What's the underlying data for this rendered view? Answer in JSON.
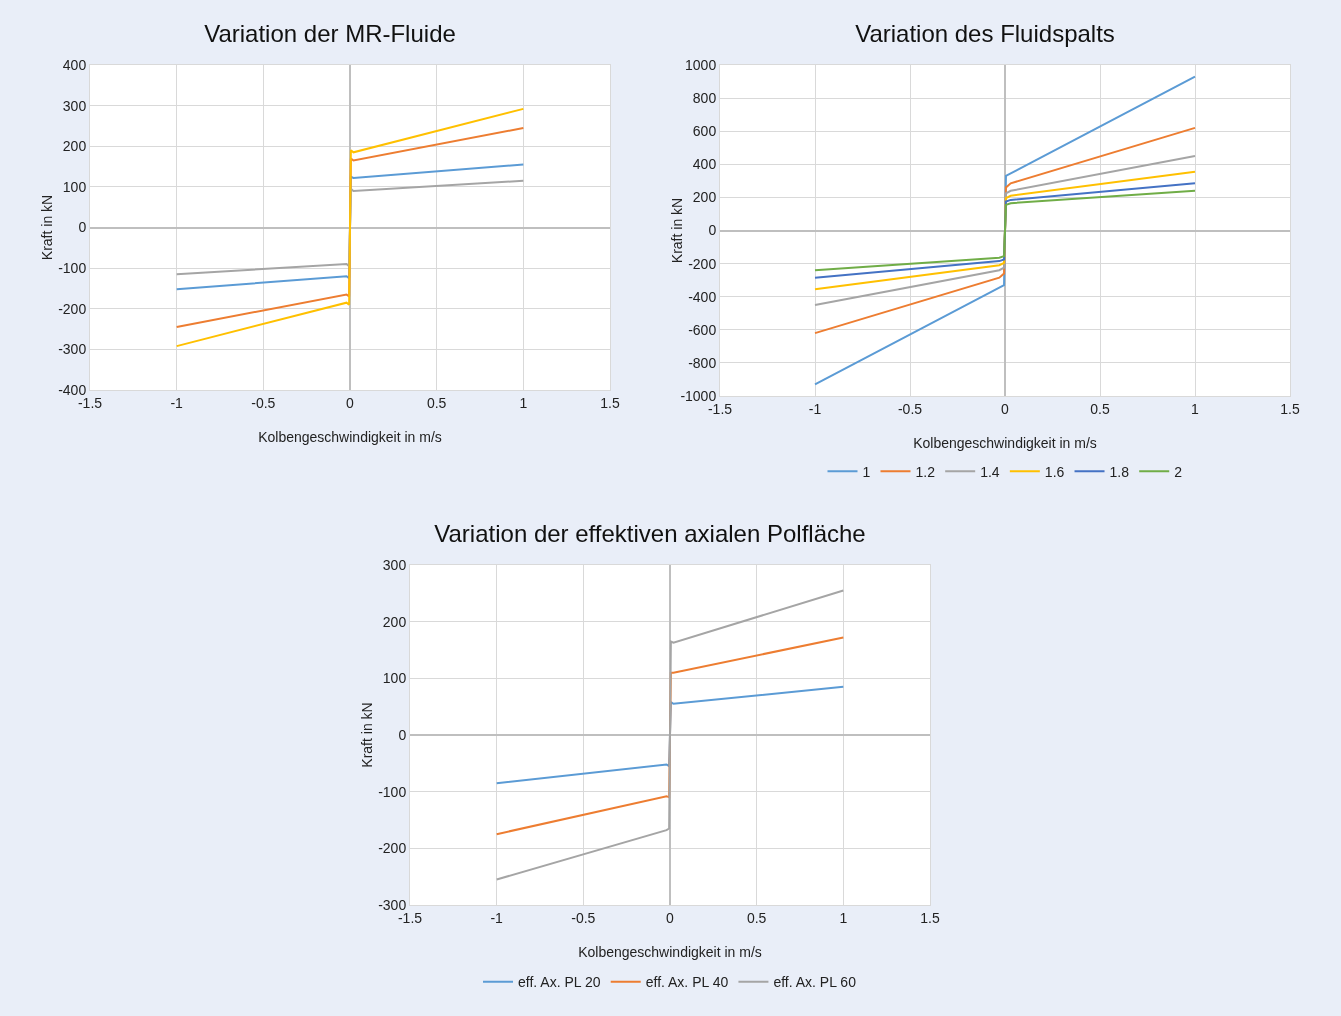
{
  "chart_data": [
    {
      "type": "line",
      "title": "Variation der MR-Fluide",
      "xlabel": "Kolbengeschwindigkeit in m/s",
      "ylabel": "Kraft in kN",
      "xlim": [
        -1.5,
        1.5
      ],
      "xticks": [
        -1.5,
        -1,
        -0.5,
        0,
        0.5,
        1,
        1.5
      ],
      "ylim": [
        -400,
        400
      ],
      "yticks": [
        -400,
        -300,
        -200,
        -100,
        0,
        100,
        200,
        300,
        400
      ],
      "grid": true,
      "legend": false,
      "marker": "none",
      "line_style": "solid",
      "series": [
        {
          "color": "#5b9bd5",
          "x": [
            -1,
            -0.02,
            -0.005,
            0.005,
            0.02,
            1
          ],
          "values": [
            -152,
            -120,
            -125,
            125,
            122,
            155
          ]
        },
        {
          "color": "#ed7d31",
          "x": [
            -1,
            -0.02,
            -0.005,
            0.005,
            0.02,
            1
          ],
          "values": [
            -245,
            -165,
            -170,
            170,
            165,
            245
          ]
        },
        {
          "color": "#a5a5a5",
          "x": [
            -1,
            -0.02,
            -0.005,
            0.005,
            0.02,
            1
          ],
          "values": [
            -115,
            -90,
            -95,
            95,
            90,
            115
          ]
        },
        {
          "color": "#ffc000",
          "x": [
            -1,
            -0.02,
            -0.005,
            0.005,
            0.02,
            1
          ],
          "values": [
            -292,
            -185,
            -190,
            190,
            185,
            292
          ]
        }
      ]
    },
    {
      "type": "line",
      "title": "Variation des Fluidspalts",
      "xlabel": "Kolbengeschwindigkeit in m/s",
      "ylabel": "Kraft in kN",
      "xlim": [
        -1.5,
        1.5
      ],
      "xticks": [
        -1.5,
        -1,
        -0.5,
        0,
        0.5,
        1,
        1.5
      ],
      "ylim": [
        -1000,
        1000
      ],
      "yticks": [
        -1000,
        -800,
        -600,
        -400,
        -200,
        0,
        200,
        400,
        600,
        800,
        1000
      ],
      "grid": true,
      "legend": "bottom",
      "marker": "none",
      "line_style": "solid",
      "series": [
        {
          "name": "1",
          "color": "#5b9bd5",
          "x": [
            -1,
            -0.03,
            -0.005,
            0.005,
            0.03,
            1
          ],
          "values": [
            -930,
            -345,
            -330,
            330,
            345,
            930
          ]
        },
        {
          "name": "1.2",
          "color": "#ed7d31",
          "x": [
            -1,
            -0.03,
            -0.005,
            0.005,
            0.03,
            1
          ],
          "values": [
            -620,
            -285,
            -260,
            260,
            285,
            620
          ]
        },
        {
          "name": "1.4",
          "color": "#a5a5a5",
          "x": [
            -1,
            -0.03,
            -0.005,
            0.005,
            0.03,
            1
          ],
          "values": [
            -450,
            -240,
            -225,
            225,
            240,
            450
          ]
        },
        {
          "name": "1.6",
          "color": "#ffc000",
          "x": [
            -1,
            -0.03,
            -0.005,
            0.005,
            0.03,
            1
          ],
          "values": [
            -355,
            -210,
            -195,
            195,
            210,
            355
          ]
        },
        {
          "name": "1.8",
          "color": "#4472c4",
          "x": [
            -1,
            -0.03,
            -0.005,
            0.005,
            0.03,
            1
          ],
          "values": [
            -285,
            -185,
            -175,
            175,
            185,
            285
          ]
        },
        {
          "name": "2",
          "color": "#70ad47",
          "x": [
            -1,
            -0.03,
            -0.005,
            0.005,
            0.03,
            1
          ],
          "values": [
            -240,
            -165,
            -155,
            155,
            165,
            240
          ]
        }
      ]
    },
    {
      "type": "line",
      "title": "Variation der effektiven axialen Polfläche",
      "xlabel": "Kolbengeschwindigkeit in m/s",
      "ylabel": "Kraft in kN",
      "xlim": [
        -1.5,
        1.5
      ],
      "xticks": [
        -1.5,
        -1,
        -0.5,
        0,
        0.5,
        1,
        1.5
      ],
      "ylim": [
        -300,
        300
      ],
      "yticks": [
        -300,
        -200,
        -100,
        0,
        100,
        200,
        300
      ],
      "grid": true,
      "legend": "bottom",
      "marker": "none",
      "line_style": "solid",
      "series": [
        {
          "name": "eff. Ax. PL 20",
          "color": "#5b9bd5",
          "x": [
            -1,
            -0.02,
            -0.005,
            0.005,
            0.02,
            1
          ],
          "values": [
            -85,
            -52,
            -55,
            58,
            55,
            85
          ]
        },
        {
          "name": "eff. Ax. PL 40",
          "color": "#ed7d31",
          "x": [
            -1,
            -0.02,
            -0.005,
            0.005,
            0.02,
            1
          ],
          "values": [
            -175,
            -108,
            -110,
            110,
            110,
            172
          ]
        },
        {
          "name": "eff. Ax. PL 60",
          "color": "#a5a5a5",
          "x": [
            -1,
            -0.02,
            -0.005,
            0.005,
            0.02,
            1
          ],
          "values": [
            -255,
            -168,
            -165,
            165,
            163,
            255
          ]
        }
      ]
    }
  ]
}
